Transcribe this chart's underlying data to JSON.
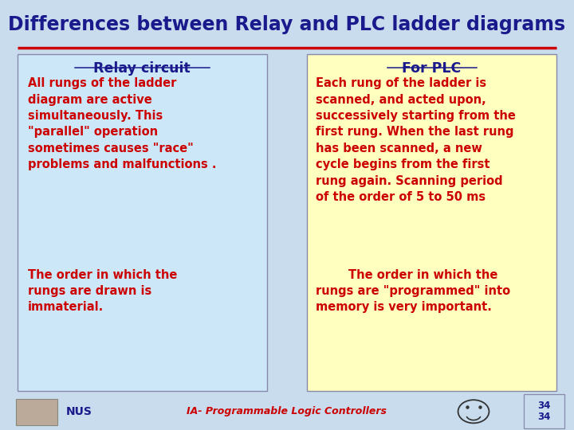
{
  "title": "Differences between Relay and PLC ladder diagrams",
  "title_color": "#1a1a8c",
  "title_fontsize": 17,
  "bg_color": "#c8dcee",
  "divider_color": "#cc0000",
  "left_box_color": "#cce8f8",
  "right_box_color": "#ffffc0",
  "header_color": "#1a1a8c",
  "text_color": "#cc0000",
  "footer_text_color": "#cc0000",
  "left_header": "Relay circuit",
  "right_header": "For PLC",
  "left_text1": "All rungs of the ladder\ndiagram are active\nsimultaneously. This\n\"parallel\" operation\nsometimes causes \"race\"\nproblems and malfunctions .",
  "left_text2": "The order in which the\nrungs are drawn is\nimmaterial.",
  "right_text1": "Each rung of the ladder is\nscanned, and acted upon,\nsuccessively starting from the\nfirst rung. When the last rung\nhas been scanned, a new\ncycle begins from the first\nrung again. Scanning period\nof the order of 5 to 50 ms",
  "right_text2": "        The order in which the\nrungs are \"programmed\" into\nmemory is very important.",
  "footer_center": "IA- Programmable Logic Controllers",
  "footer_left": "NUS",
  "footer_page_top": "34",
  "footer_page_bot": "34"
}
